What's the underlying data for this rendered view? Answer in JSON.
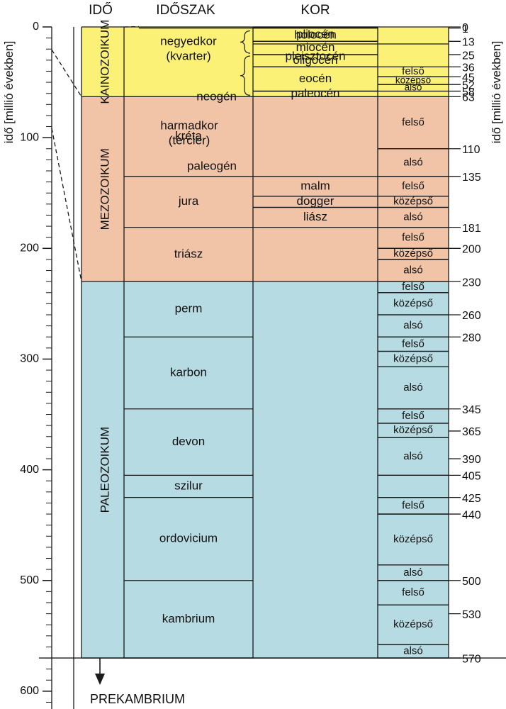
{
  "headers": {
    "ido": "IDŐ",
    "idoszak": "IDŐSZAK",
    "kor": "KOR"
  },
  "axis_label_left": "idő [millió években]",
  "axis_label_right": "idő [millió években]",
  "axis_ticks": [
    "0",
    "100",
    "200",
    "300",
    "400",
    "500",
    "600"
  ],
  "prekambrium_label": "PREKAMBRIUM",
  "colors": {
    "kainozoikum": "#fbf176",
    "mezozoikum": "#f1c4a8",
    "paleozoikum": "#b7dbe2",
    "line": "#1a1a1a"
  },
  "chart_data": {
    "type": "table",
    "eras": [
      {
        "name": "KAINOZOIKUM",
        "start": 0,
        "end": 63
      },
      {
        "name": "MEZOZOIKUM",
        "start": 63,
        "end": 230
      },
      {
        "name": "PALEOZOIKUM",
        "start": 230,
        "end": 570
      }
    ],
    "periods": [
      {
        "name": "negyedkor\n(kvarter)",
        "start": 0,
        "end": 1
      },
      {
        "name": "harmadkor\n(tercier)",
        "start": 1,
        "end": 63
      },
      {
        "name": "kréta",
        "start": 63,
        "end": 135
      },
      {
        "name": "jura",
        "start": 135,
        "end": 181
      },
      {
        "name": "triász",
        "start": 181,
        "end": 230
      },
      {
        "name": "perm",
        "start": 230,
        "end": 280
      },
      {
        "name": "karbon",
        "start": 280,
        "end": 345
      },
      {
        "name": "devon",
        "start": 345,
        "end": 405
      },
      {
        "name": "szilur",
        "start": 405,
        "end": 425
      },
      {
        "name": "ordovicium",
        "start": 425,
        "end": 500
      },
      {
        "name": "kambrium",
        "start": 500,
        "end": 570
      }
    ],
    "subperiods": [
      {
        "name": "neogén",
        "start": 1,
        "end": 25
      },
      {
        "name": "paleogén",
        "start": 25,
        "end": 63
      }
    ],
    "epochs": [
      {
        "name": "holocén",
        "start": 0,
        "end": 0.5
      },
      {
        "name": "pleisztocén",
        "start": 0.5,
        "end": 1
      },
      {
        "name": "pliocén",
        "start": 1,
        "end": 13
      },
      {
        "name": "miocén",
        "start": 13,
        "end": 25
      },
      {
        "name": "oligocén",
        "start": 25,
        "end": 36
      },
      {
        "name": "eocén",
        "start": 36,
        "end": 58
      },
      {
        "name": "paleocén",
        "start": 58,
        "end": 63
      },
      {
        "name": "malm",
        "start": 135,
        "end": 153
      },
      {
        "name": "dogger",
        "start": 153,
        "end": 163
      },
      {
        "name": "liász",
        "start": 163,
        "end": 181
      }
    ],
    "stages": [
      {
        "name": "felső",
        "start": 36,
        "end": 45
      },
      {
        "name": "középső",
        "start": 45,
        "end": 52
      },
      {
        "name": "alsó",
        "start": 52,
        "end": 58
      },
      {
        "name": "felső",
        "start": 63,
        "end": 110
      },
      {
        "name": "alsó",
        "start": 110,
        "end": 135
      },
      {
        "name": "felső",
        "start": 135,
        "end": 153
      },
      {
        "name": "középső",
        "start": 153,
        "end": 163
      },
      {
        "name": "alsó",
        "start": 163,
        "end": 181
      },
      {
        "name": "felső",
        "start": 181,
        "end": 200
      },
      {
        "name": "középső",
        "start": 200,
        "end": 210
      },
      {
        "name": "alsó",
        "start": 210,
        "end": 230
      },
      {
        "name": "felső",
        "start": 230,
        "end": 240
      },
      {
        "name": "középső",
        "start": 240,
        "end": 260
      },
      {
        "name": "alsó",
        "start": 260,
        "end": 280
      },
      {
        "name": "felső",
        "start": 280,
        "end": 293
      },
      {
        "name": "középső",
        "start": 293,
        "end": 307
      },
      {
        "name": "alsó",
        "start": 307,
        "end": 345
      },
      {
        "name": "felső",
        "start": 345,
        "end": 358
      },
      {
        "name": "középső",
        "start": 358,
        "end": 371
      },
      {
        "name": "alsó",
        "start": 371,
        "end": 405
      },
      {
        "name": "",
        "start": 405,
        "end": 425
      },
      {
        "name": "felső",
        "start": 425,
        "end": 440
      },
      {
        "name": "középső",
        "start": 440,
        "end": 486
      },
      {
        "name": "alsó",
        "start": 486,
        "end": 500
      },
      {
        "name": "felső",
        "start": 500,
        "end": 522
      },
      {
        "name": "középső",
        "start": 522,
        "end": 558
      },
      {
        "name": "alsó",
        "start": 558,
        "end": 570
      }
    ],
    "boundary_labels": [
      {
        "label": "0",
        "value": 0
      },
      {
        "label": "1",
        "value": 1
      },
      {
        "label": "13",
        "value": 13
      },
      {
        "label": "25",
        "value": 25
      },
      {
        "label": "36",
        "value": 36
      },
      {
        "label": "45",
        "value": 45
      },
      {
        "label": "52",
        "value": 52
      },
      {
        "label": "58",
        "value": 58
      },
      {
        "label": "63",
        "value": 63
      },
      {
        "label": "110",
        "value": 110
      },
      {
        "label": "135",
        "value": 135
      },
      {
        "label": "181",
        "value": 181
      },
      {
        "label": "200",
        "value": 200
      },
      {
        "label": "230",
        "value": 230
      },
      {
        "label": "260",
        "value": 260
      },
      {
        "label": "280",
        "value": 280
      },
      {
        "label": "345",
        "value": 345
      },
      {
        "label": "365",
        "value": 365
      },
      {
        "label": "390",
        "value": 390
      },
      {
        "label": "405",
        "value": 405
      },
      {
        "label": "425",
        "value": 425
      },
      {
        "label": "440",
        "value": 440
      },
      {
        "label": "500",
        "value": 500
      },
      {
        "label": "530",
        "value": 530
      },
      {
        "label": "570",
        "value": 570
      }
    ]
  }
}
